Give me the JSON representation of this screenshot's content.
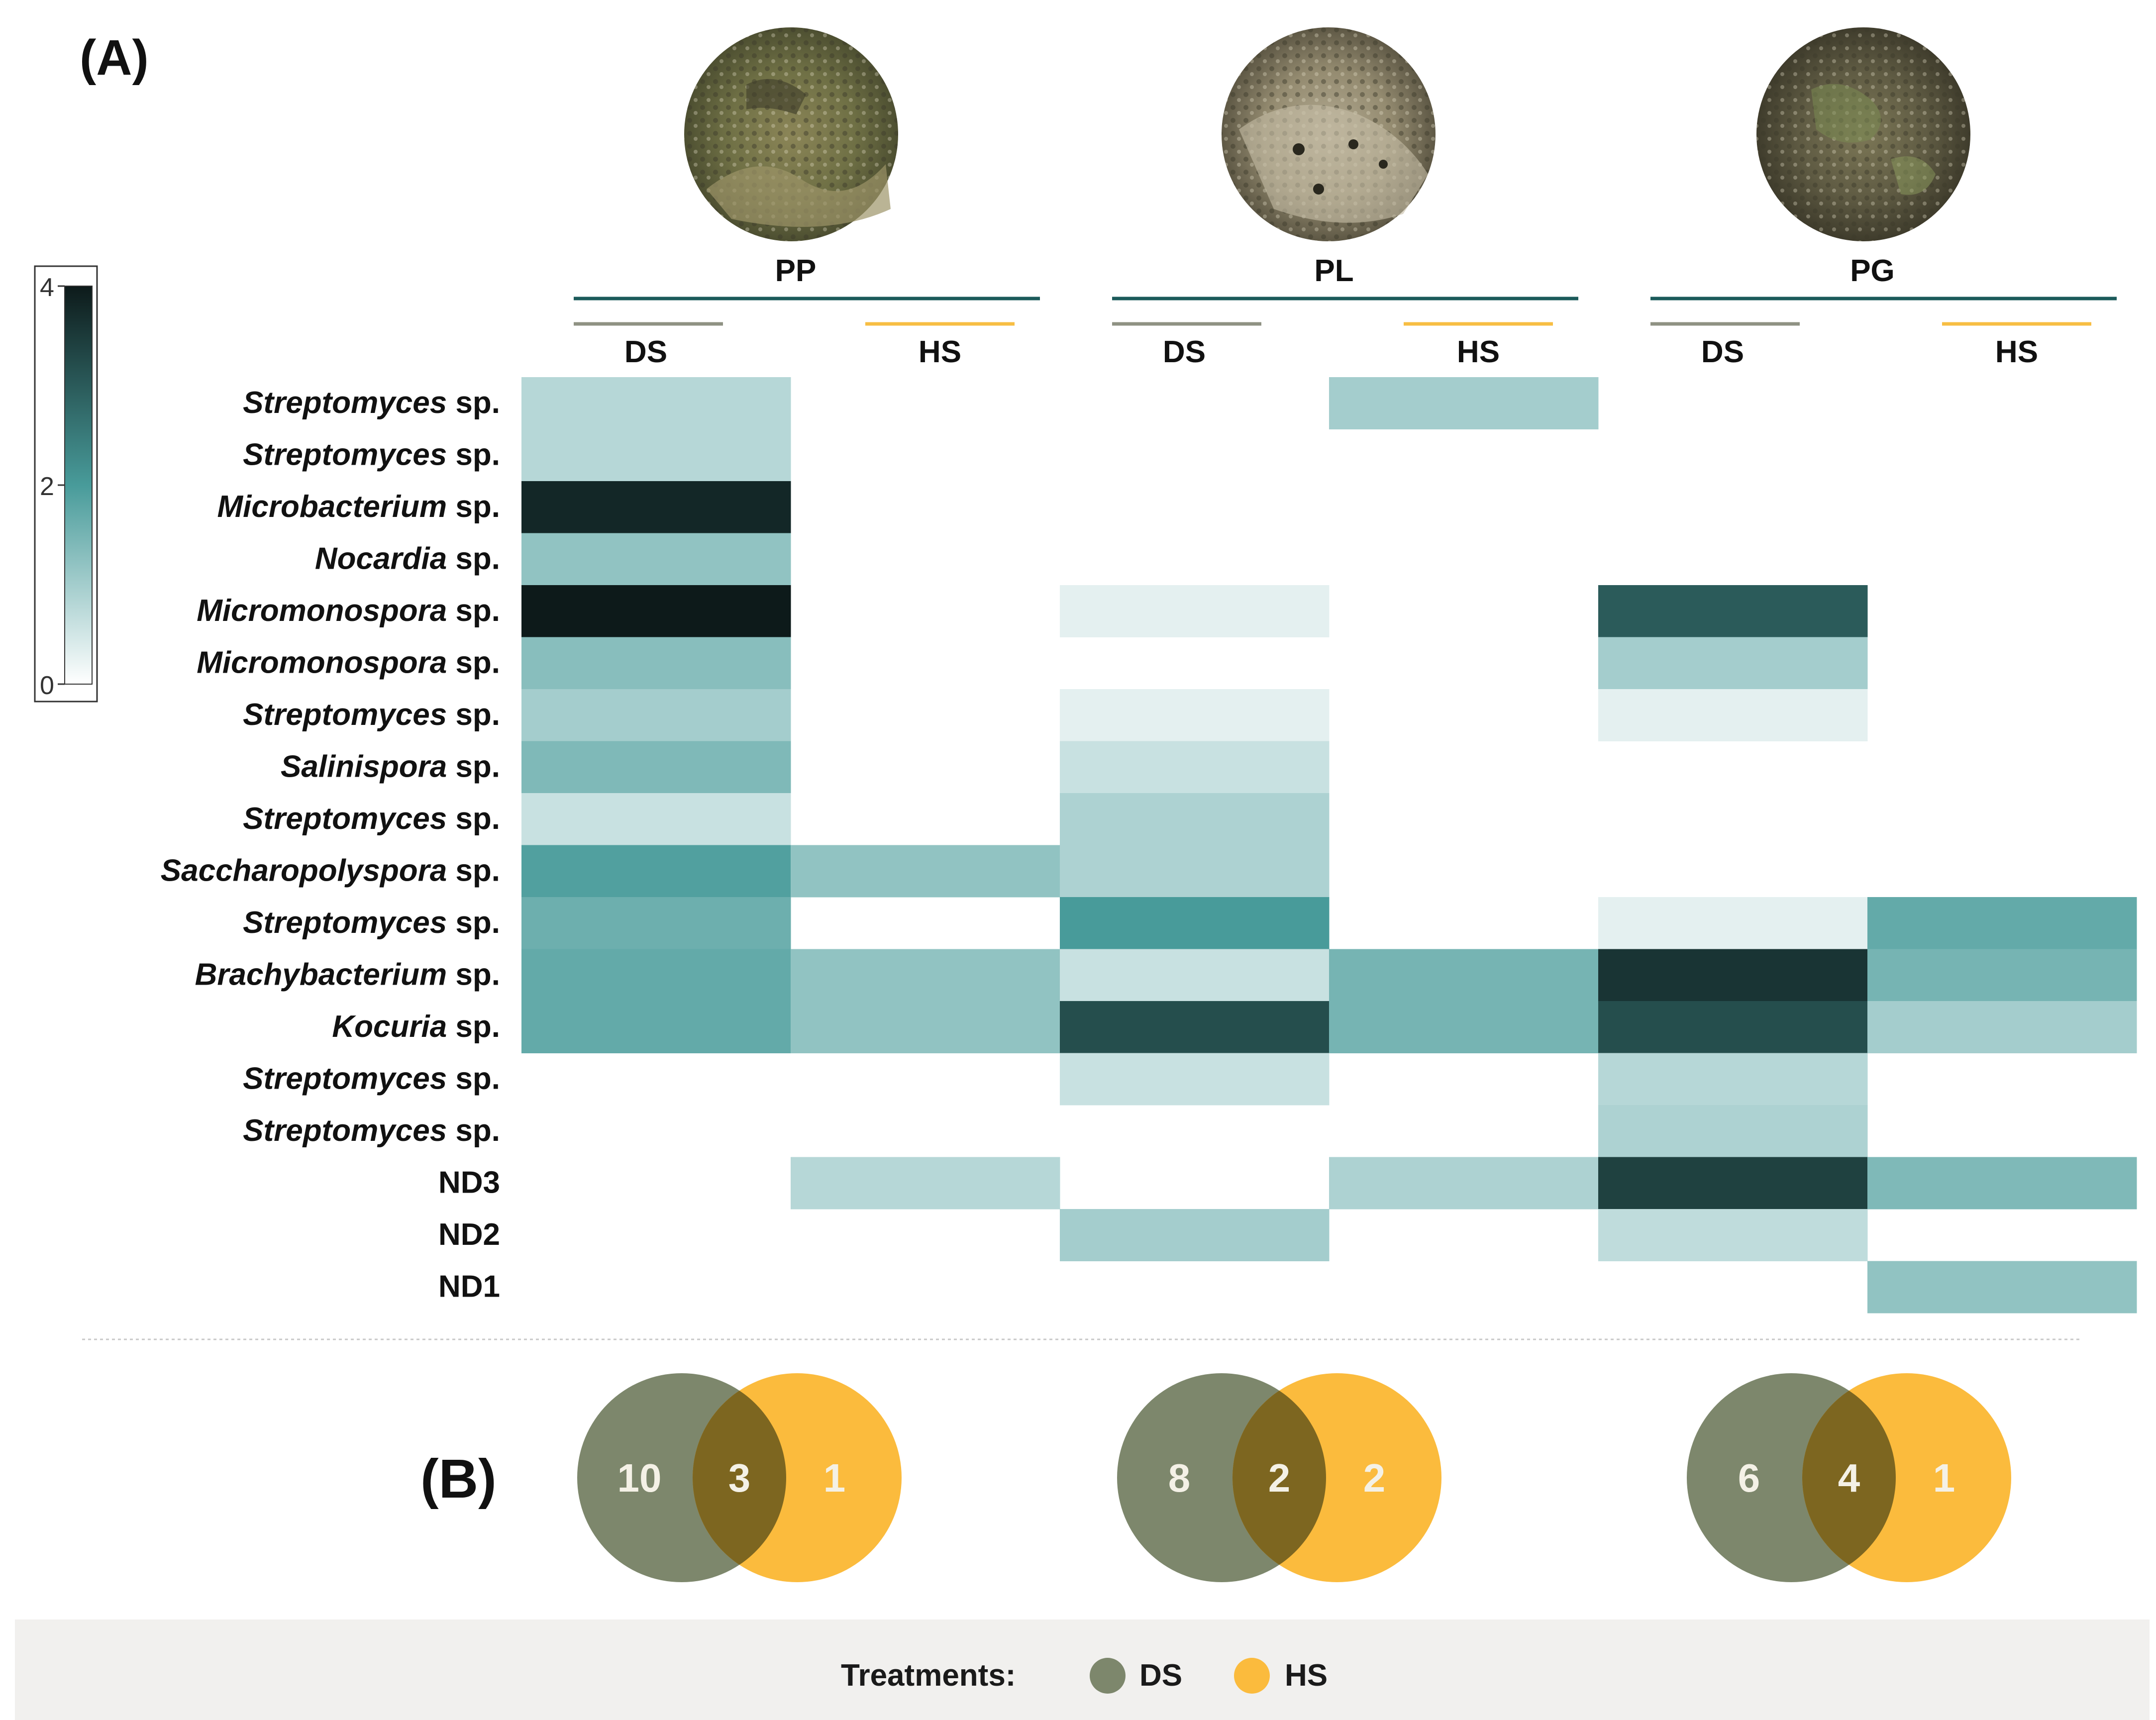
{
  "panel_labels": {
    "a": "(A)",
    "b": "(B)"
  },
  "colorbar": {
    "ticks": [
      "4",
      "2",
      "0"
    ],
    "max": 4
  },
  "groups": [
    {
      "id": "PP",
      "label": "PP",
      "treatments": [
        "DS",
        "HS"
      ]
    },
    {
      "id": "PL",
      "label": "PL",
      "treatments": [
        "DS",
        "HS"
      ]
    },
    {
      "id": "PG",
      "label": "PG",
      "treatments": [
        "DS",
        "HS"
      ]
    }
  ],
  "colors": {
    "group_line": "#1b5a5a",
    "ds": "#7d876c",
    "hs": "#fbbb3d",
    "ds_line": "#8f9283",
    "hs_line": "#f7be43",
    "overlap": "#7d6620",
    "heat_low": "#ffffff",
    "heat_mid": "#489b9a",
    "heat_high": "#0d1a1a"
  },
  "chart_data": {
    "type": "heatmap",
    "columns": [
      "PP-DS",
      "PP-HS",
      "PL-DS",
      "PL-HS",
      "PG-DS",
      "PG-HS"
    ],
    "rows": [
      {
        "genus": "Streptomyces",
        "suffix": "sp.",
        "italic": true
      },
      {
        "genus": "Streptomyces",
        "suffix": "sp.",
        "italic": true
      },
      {
        "genus": "Microbacterium",
        "suffix": "sp.",
        "italic": true
      },
      {
        "genus": "Nocardia",
        "suffix": "sp.",
        "italic": true
      },
      {
        "genus": "Micromonospora",
        "suffix": "sp.",
        "italic": true
      },
      {
        "genus": "Micromonospora",
        "suffix": "sp.",
        "italic": true
      },
      {
        "genus": "Streptomyces",
        "suffix": "sp.",
        "italic": true
      },
      {
        "genus": "Salinispora",
        "suffix": "sp.",
        "italic": true
      },
      {
        "genus": "Streptomyces",
        "suffix": "sp.",
        "italic": true
      },
      {
        "genus": "Saccharopolyspora",
        "suffix": "sp.",
        "italic": true
      },
      {
        "genus": "Streptomyces",
        "suffix": "sp.",
        "italic": true
      },
      {
        "genus": "Brachybacterium",
        "suffix": "sp.",
        "italic": true
      },
      {
        "genus": "Kocuria",
        "suffix": "sp.",
        "italic": true
      },
      {
        "genus": "Streptomyces",
        "suffix": "sp.",
        "italic": true
      },
      {
        "genus": "Streptomyces",
        "suffix": "sp.",
        "italic": true
      },
      {
        "genus": "ND3",
        "suffix": "",
        "italic": false
      },
      {
        "genus": "ND2",
        "suffix": "",
        "italic": false
      },
      {
        "genus": "ND1",
        "suffix": "",
        "italic": false
      }
    ],
    "values": [
      [
        0.8,
        null,
        null,
        1.0,
        null,
        null
      ],
      [
        0.8,
        null,
        null,
        null,
        null,
        null
      ],
      [
        3.8,
        null,
        null,
        null,
        null,
        null
      ],
      [
        1.2,
        null,
        null,
        null,
        null,
        null
      ],
      [
        4.0,
        null,
        0.3,
        null,
        3.0,
        null
      ],
      [
        1.3,
        null,
        null,
        null,
        1.0,
        null
      ],
      [
        1.0,
        null,
        0.3,
        null,
        0.3,
        null
      ],
      [
        1.4,
        null,
        0.6,
        null,
        null,
        null
      ],
      [
        0.6,
        null,
        0.9,
        null,
        null,
        null
      ],
      [
        1.9,
        1.2,
        0.9,
        null,
        null,
        null
      ],
      [
        1.6,
        null,
        2.0,
        null,
        0.3,
        1.7
      ],
      [
        1.7,
        1.2,
        0.6,
        1.5,
        3.6,
        1.5
      ],
      [
        1.7,
        1.2,
        3.2,
        1.5,
        3.2,
        1.0
      ],
      [
        null,
        null,
        0.6,
        null,
        0.8,
        null
      ],
      [
        null,
        null,
        null,
        null,
        0.9,
        null
      ],
      [
        null,
        0.8,
        null,
        0.9,
        3.4,
        1.4
      ],
      [
        null,
        null,
        1.0,
        null,
        0.7,
        null
      ],
      [
        null,
        null,
        null,
        null,
        null,
        1.2
      ]
    ],
    "colorbar_range": [
      0,
      4
    ],
    "venn": [
      {
        "group": "PP",
        "ds_only": 10,
        "shared": 3,
        "hs_only": 1
      },
      {
        "group": "PL",
        "ds_only": 8,
        "shared": 2,
        "hs_only": 2
      },
      {
        "group": "PG",
        "ds_only": 6,
        "shared": 4,
        "hs_only": 1
      }
    ]
  },
  "legend": {
    "title": "Treatments:",
    "items": [
      {
        "label": "DS",
        "color": "#7d876c"
      },
      {
        "label": "HS",
        "color": "#fbbb3d"
      }
    ]
  }
}
